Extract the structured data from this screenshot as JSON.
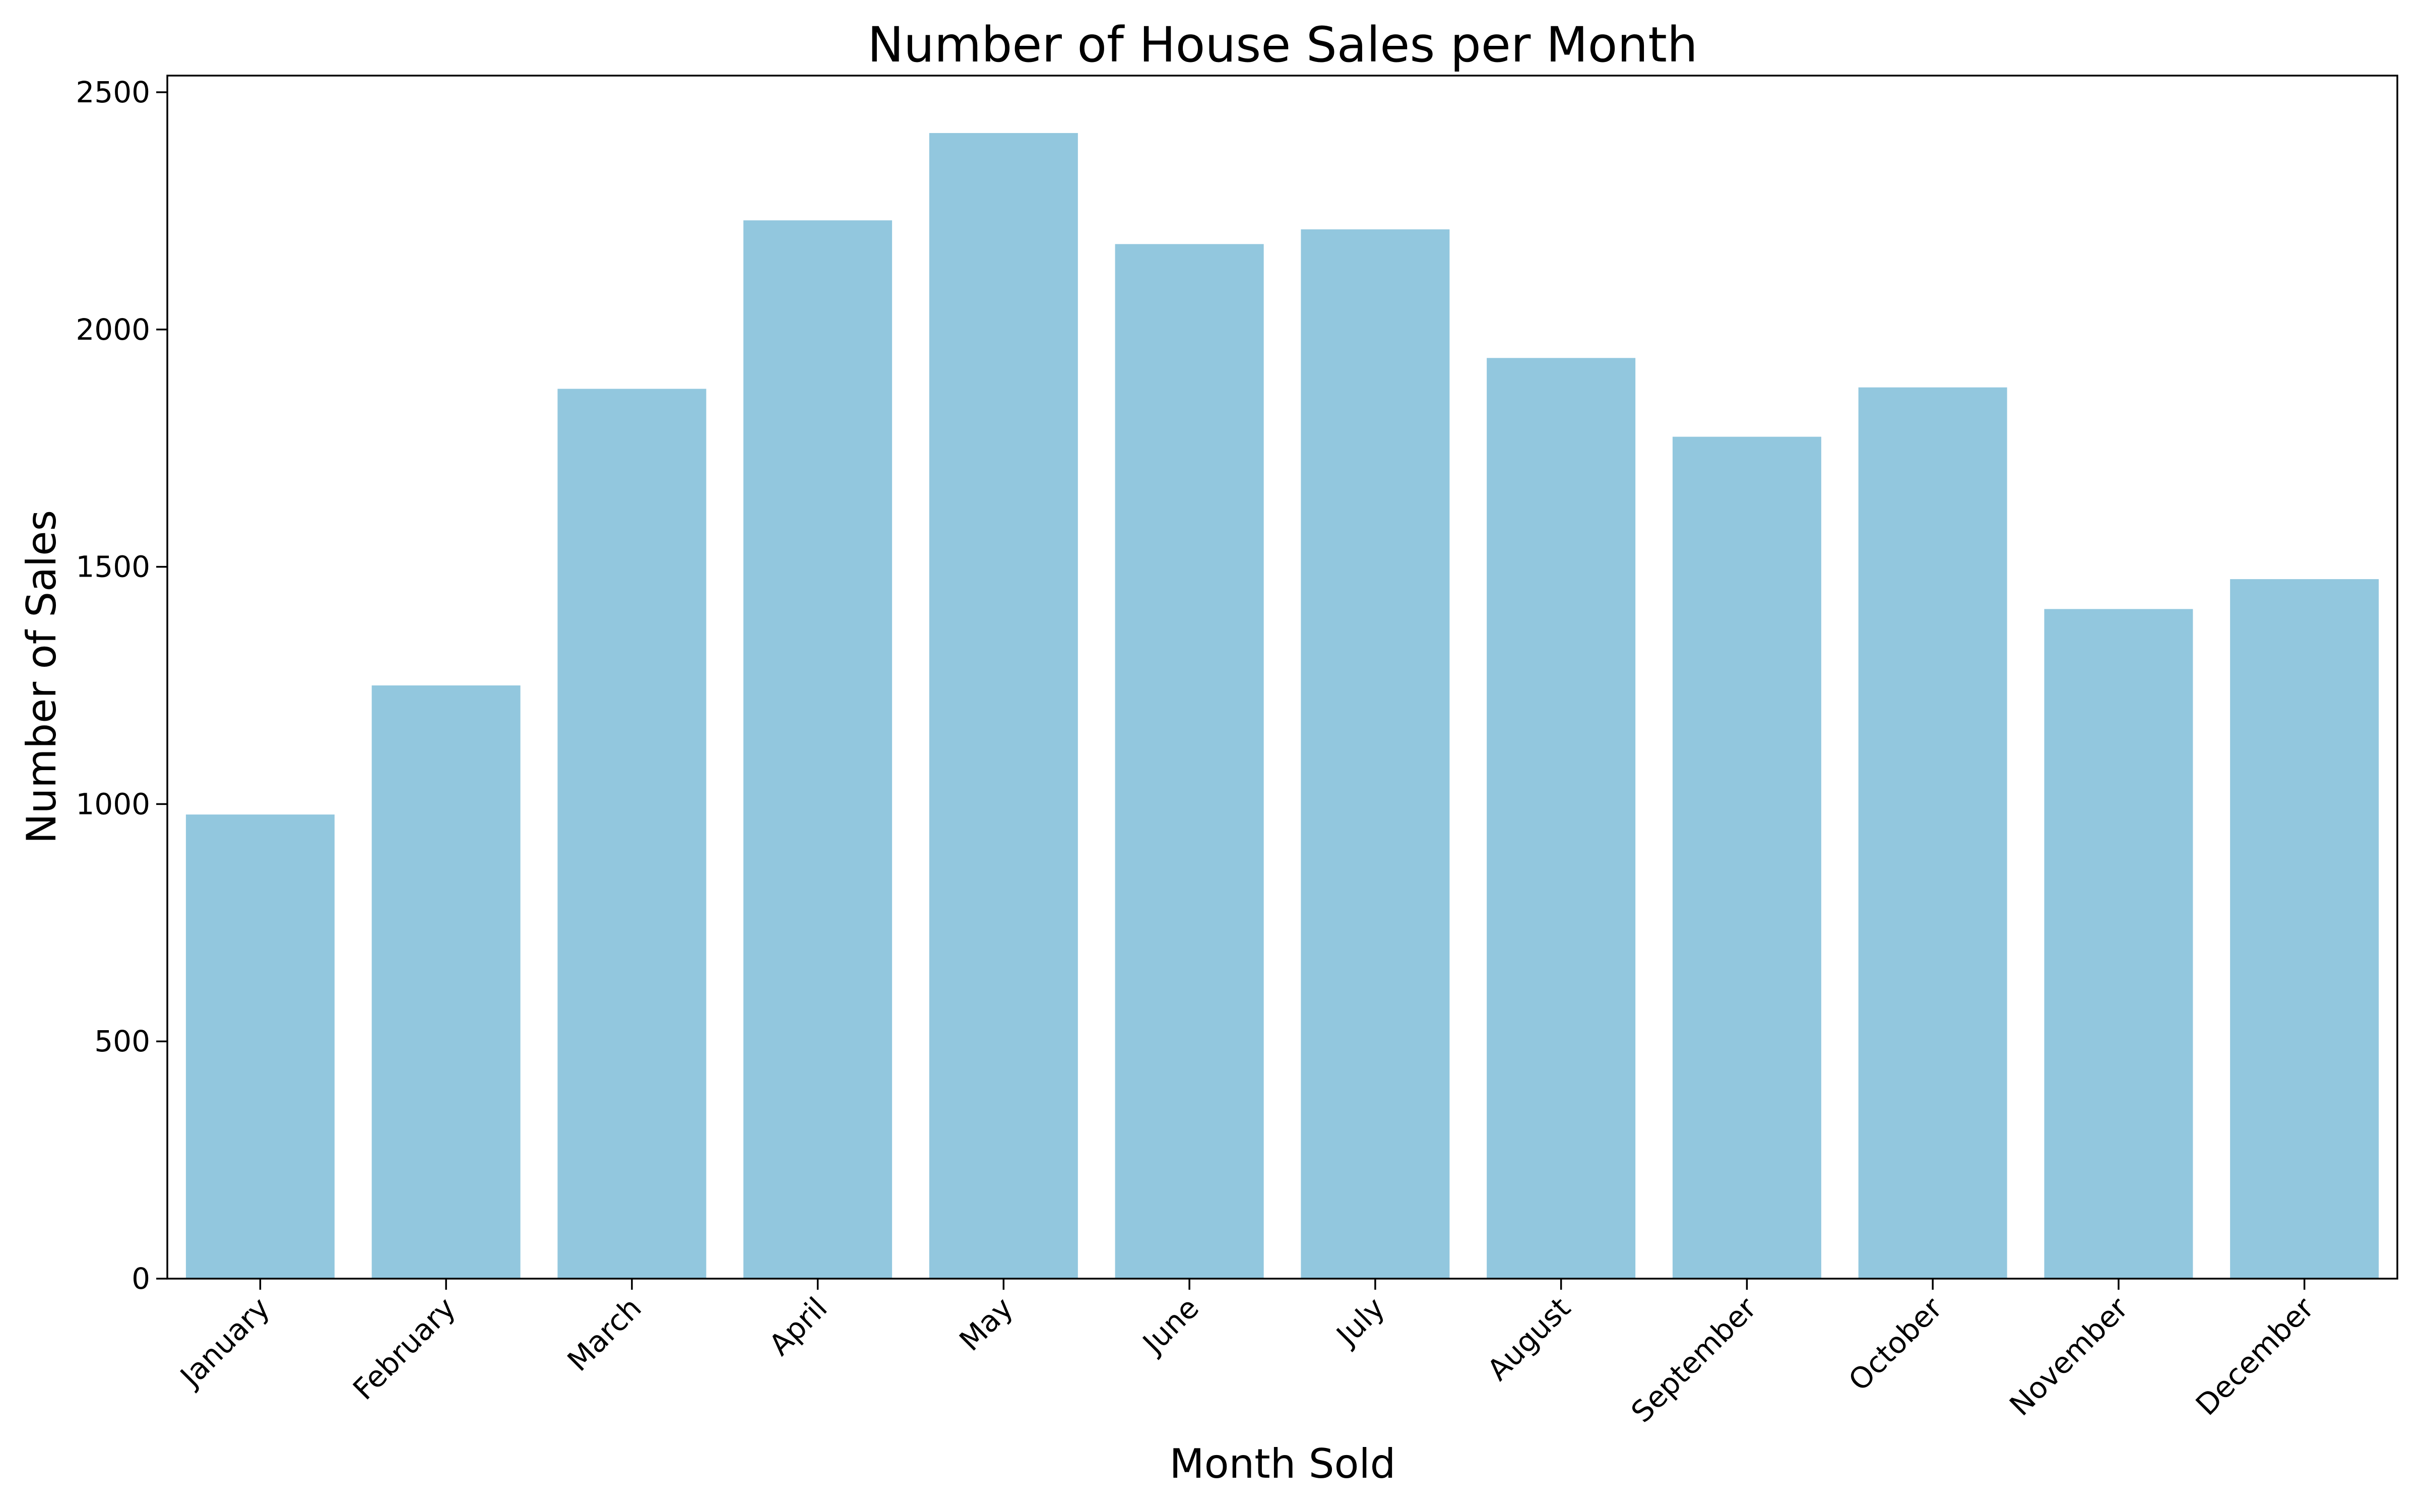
{
  "chart_data": {
    "type": "bar",
    "title": "Number of House Sales per Month",
    "xlabel": "Month Sold",
    "ylabel": "Number of Sales",
    "categories": [
      "January",
      "February",
      "March",
      "April",
      "May",
      "June",
      "July",
      "August",
      "September",
      "October",
      "November",
      "December"
    ],
    "values": [
      978,
      1250,
      1875,
      2230,
      2414,
      2180,
      2211,
      1940,
      1774,
      1878,
      1411,
      1474
    ],
    "ylim": [
      0,
      2535
    ],
    "yticks": [
      0,
      500,
      1000,
      1500,
      2000,
      2500
    ],
    "bar_color": "#92c7de",
    "grid": false,
    "legend": "none"
  }
}
